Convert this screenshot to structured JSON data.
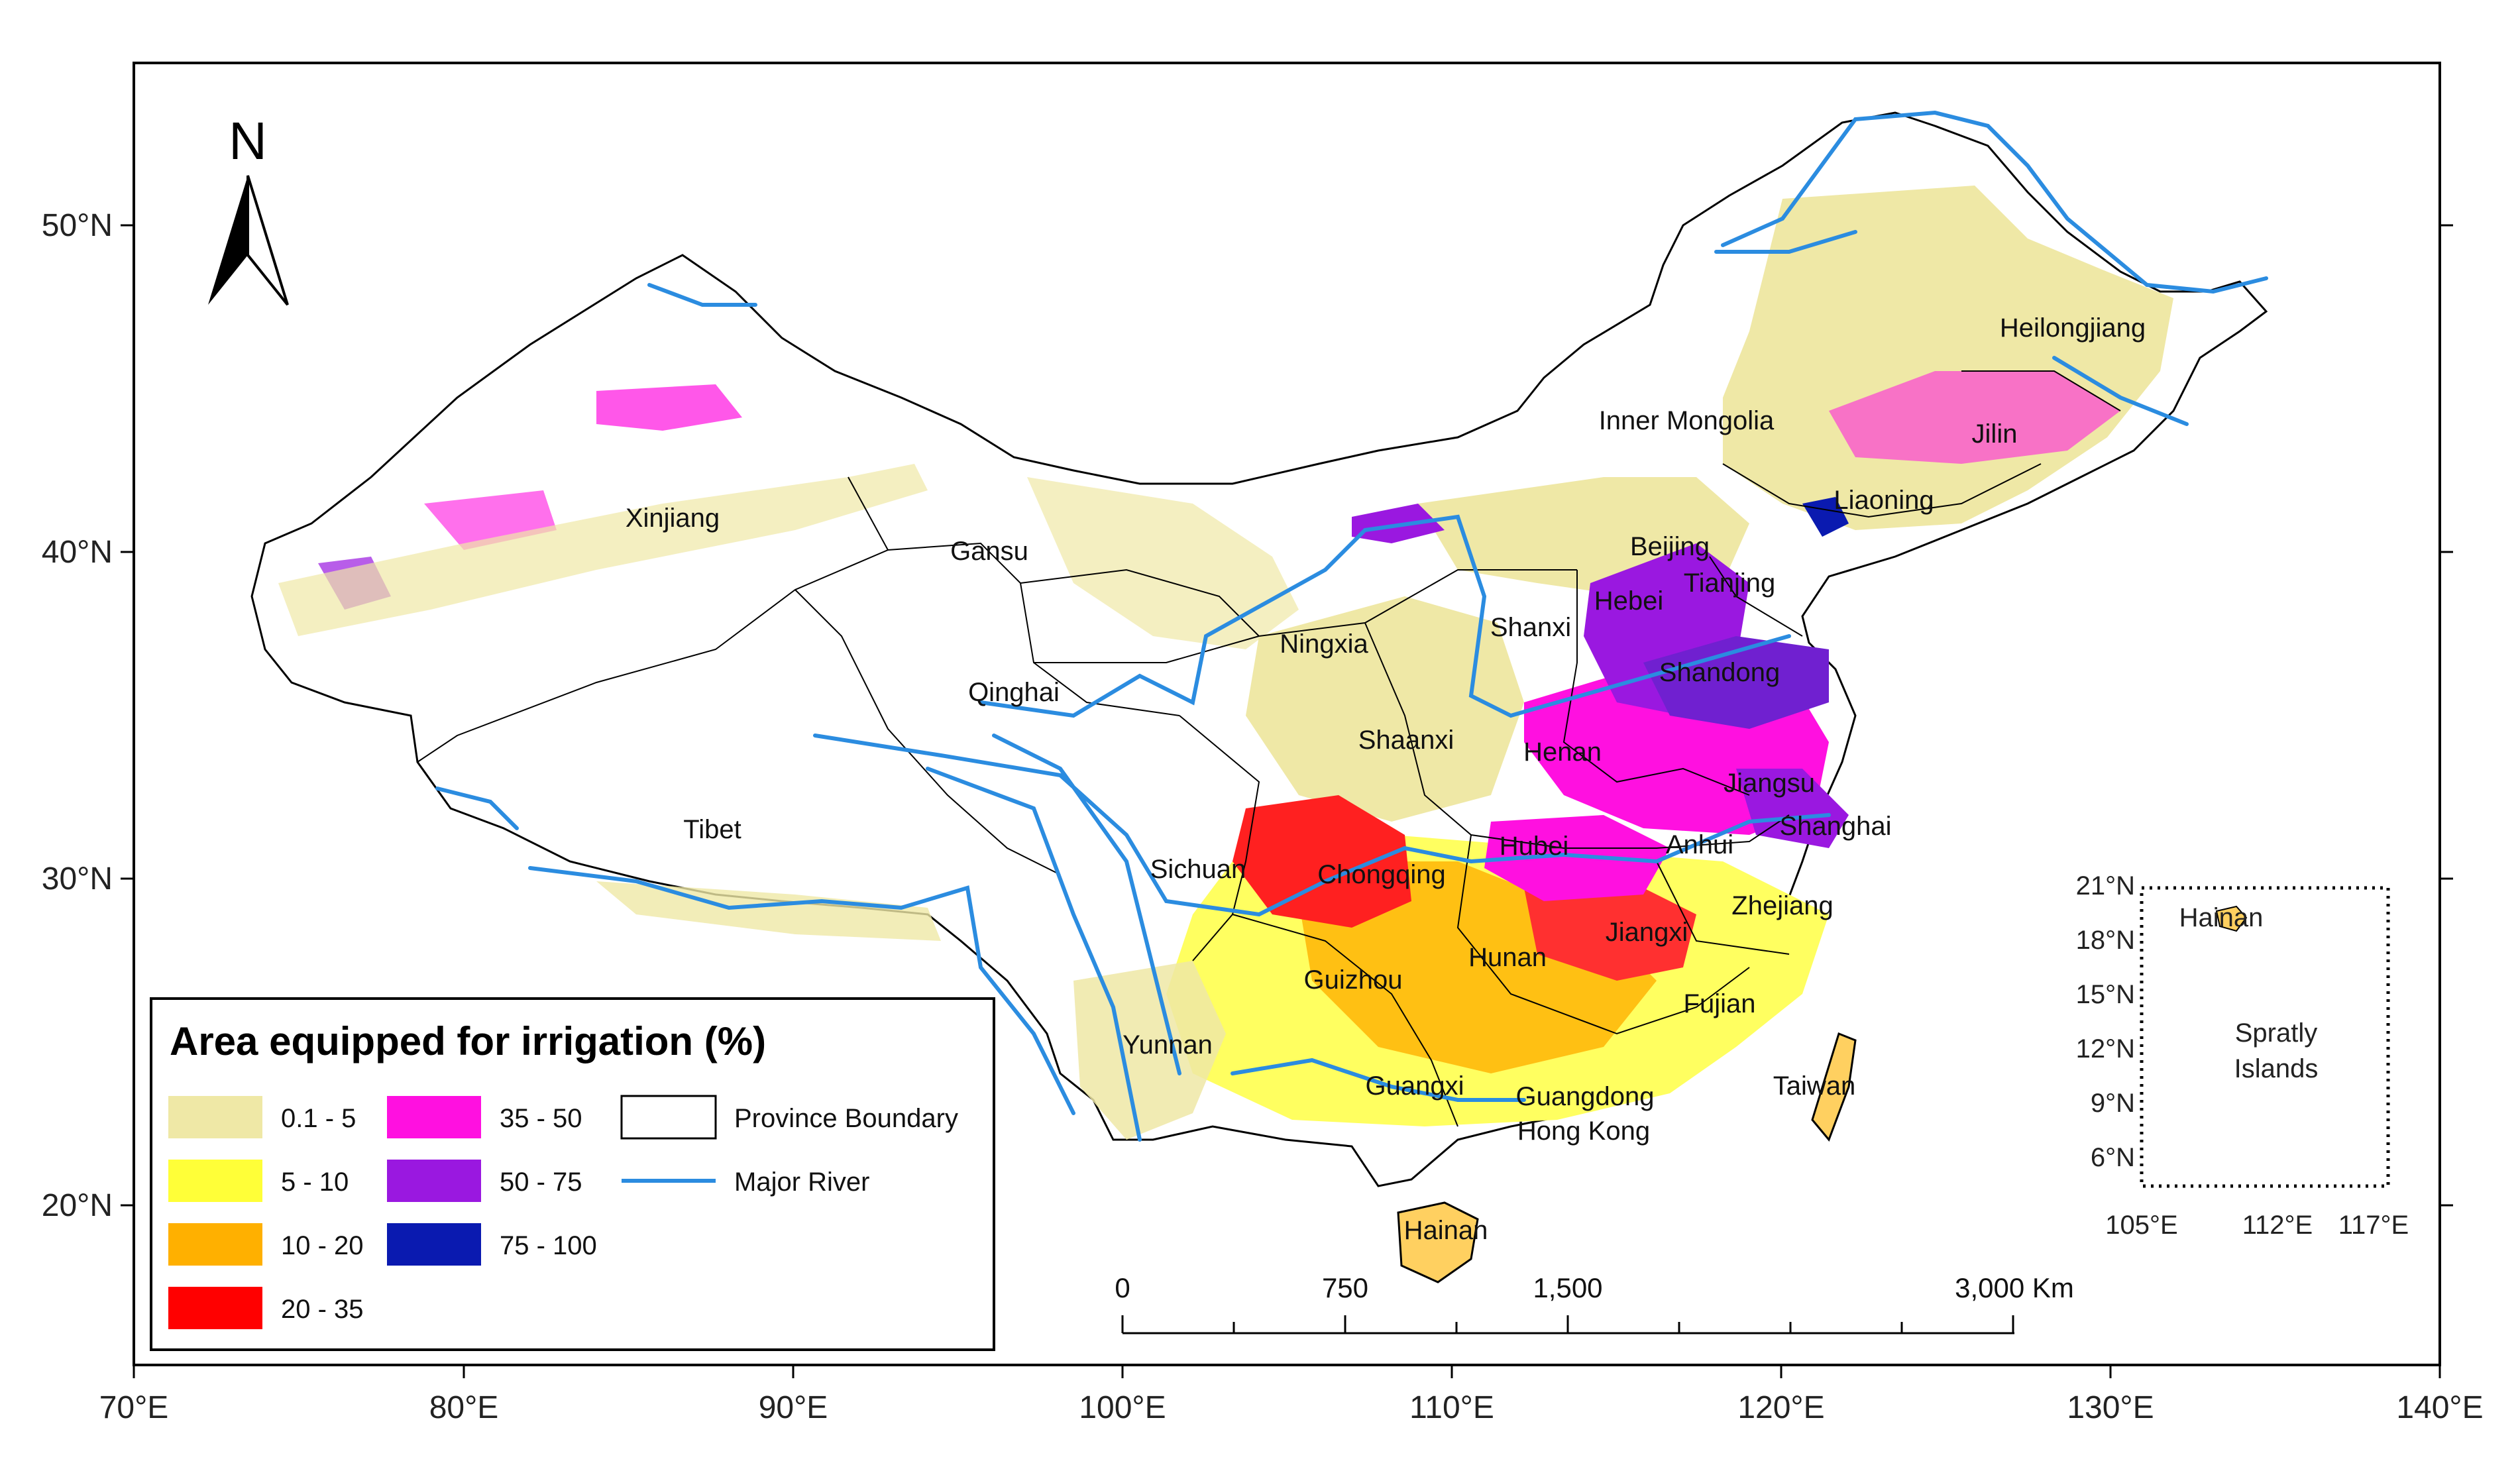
{
  "axes": {
    "lon_ticks": [
      "70°E",
      "80°E",
      "90°E",
      "100°E",
      "110°E",
      "120°E",
      "130°E",
      "140°E"
    ],
    "lat_ticks": [
      "50°N",
      "40°N",
      "30°N",
      "20°N"
    ]
  },
  "north_arrow": {
    "label": "N"
  },
  "legend": {
    "title": "Area equipped for irrigation (%)",
    "classes": [
      {
        "label": "0.1 - 5",
        "color": "#efe8a6"
      },
      {
        "label": "5 - 10",
        "color": "#ffff38"
      },
      {
        "label": "10 - 20",
        "color": "#ffb000"
      },
      {
        "label": "20 - 35",
        "color": "#ff0000"
      },
      {
        "label": "35 - 50",
        "color": "#ff10e0"
      },
      {
        "label": "50 - 75",
        "color": "#9a18e0"
      },
      {
        "label": "75 - 100",
        "color": "#0a1ab0"
      }
    ],
    "boundary_label": "Province Boundary",
    "river_label": "Major River",
    "river_color": "#2b8ce0"
  },
  "scale_bar": {
    "labels": [
      "0",
      "750",
      "1,500",
      "3,000 Km"
    ]
  },
  "provinces": [
    "Xinjiang",
    "Gansu",
    "Qinghai",
    "Tibet",
    "Sichuan",
    "Yunnan",
    "Chongqing",
    "Guizhou",
    "Guangxi",
    "Guangdong",
    "Hong Kong",
    "Hainan",
    "Hunan",
    "Hubei",
    "Jiangxi",
    "Fujian",
    "Zhejiang",
    "Taiwan",
    "Anhui",
    "Shanghai",
    "Jiangsu",
    "Henan",
    "Shaanxi",
    "Ningxia",
    "Shanxi",
    "Hebei",
    "Beijing",
    "Tianjing",
    "Shandong",
    "Liaoning",
    "Jilin",
    "Heilongjiang",
    "Inner Mongolia"
  ],
  "inset": {
    "lat_ticks": [
      "21°N",
      "18°N",
      "15°N",
      "12°N",
      "9°N",
      "6°N"
    ],
    "lon_ticks": [
      "105°E",
      "112°E",
      "117°E"
    ],
    "labels": [
      "Hainan",
      "Spratly",
      "Islands"
    ]
  }
}
